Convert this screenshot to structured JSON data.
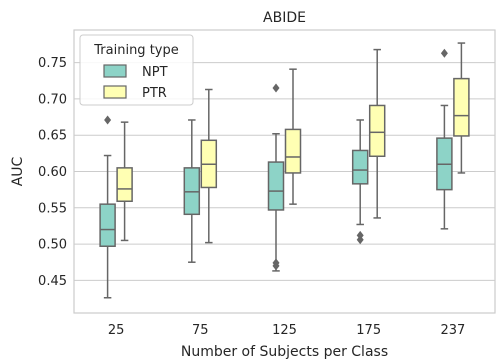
{
  "chart_data": {
    "type": "box",
    "title": "ABIDE",
    "xlabel": "Number of Subjects per Class",
    "ylabel": "AUC",
    "categories": [
      "25",
      "75",
      "125",
      "175",
      "237"
    ],
    "yticks": [
      "0.45",
      "0.50",
      "0.55",
      "0.60",
      "0.65",
      "0.70",
      "0.75"
    ],
    "ylim": [
      0.405,
      0.795
    ],
    "grid": "horizontal",
    "legend": {
      "title": "Training type",
      "placement": "top-left"
    },
    "series": [
      {
        "name": "NPT",
        "color": "#8dd3c7",
        "boxes": [
          {
            "whislo": 0.426,
            "q1": 0.497,
            "med": 0.52,
            "q3": 0.555,
            "whishi": 0.622,
            "fliers": [
              0.671
            ]
          },
          {
            "whislo": 0.475,
            "q1": 0.541,
            "med": 0.572,
            "q3": 0.605,
            "whishi": 0.671,
            "fliers": []
          },
          {
            "whislo": 0.463,
            "q1": 0.547,
            "med": 0.573,
            "q3": 0.613,
            "whishi": 0.652,
            "fliers": [
              0.715,
              0.474,
              0.47
            ]
          },
          {
            "whislo": 0.527,
            "q1": 0.583,
            "med": 0.602,
            "q3": 0.629,
            "whishi": 0.671,
            "fliers": [
              0.512,
              0.506
            ]
          },
          {
            "whislo": 0.521,
            "q1": 0.575,
            "med": 0.61,
            "q3": 0.646,
            "whishi": 0.691,
            "fliers": [
              0.763
            ]
          }
        ]
      },
      {
        "name": "PTR",
        "color": "#ffffb3",
        "boxes": [
          {
            "whislo": 0.505,
            "q1": 0.559,
            "med": 0.576,
            "q3": 0.605,
            "whishi": 0.668,
            "fliers": []
          },
          {
            "whislo": 0.502,
            "q1": 0.578,
            "med": 0.61,
            "q3": 0.643,
            "whishi": 0.713,
            "fliers": []
          },
          {
            "whislo": 0.555,
            "q1": 0.598,
            "med": 0.62,
            "q3": 0.658,
            "whishi": 0.741,
            "fliers": []
          },
          {
            "whislo": 0.536,
            "q1": 0.621,
            "med": 0.654,
            "q3": 0.691,
            "whishi": 0.768,
            "fliers": []
          },
          {
            "whislo": 0.598,
            "q1": 0.649,
            "med": 0.677,
            "q3": 0.728,
            "whishi": 0.777,
            "fliers": []
          }
        ]
      }
    ]
  }
}
